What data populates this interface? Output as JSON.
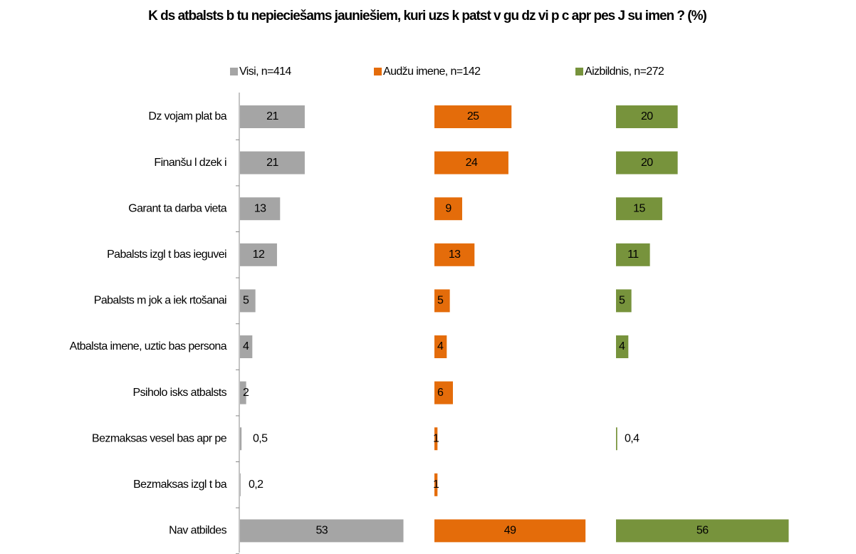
{
  "chart_data": {
    "type": "bar",
    "orientation": "horizontal",
    "title": "K ds atbalsts b tu nepieciešams jauniešiem, kuri uzs k patst v gu dz vi p c apr pes J su imen ? (%)",
    "categories": [
      "Dz vojam  plat ba",
      "Finanšu l dzek i",
      "Garant  ta darba vieta",
      "Pabalsts izgl t bas ieguvei",
      "Pabalsts m  jok a iek  rtošanai",
      "Atbalsta  imene, uztic bas persona",
      "Psiholo  isks atbalsts",
      "Bezmaksas vesel bas apr  pe",
      "Bezmaksas izgl t ba",
      "Nav atbildes"
    ],
    "series": [
      {
        "name": "Visi, n=414",
        "color": "#a5a5a5",
        "values": [
          21,
          21,
          13,
          12,
          5,
          4,
          2,
          0.5,
          0.2,
          53
        ],
        "value_labels": [
          "21",
          "21",
          "13",
          "12",
          "5",
          "4",
          "2",
          "0,5",
          "0,2",
          "53"
        ]
      },
      {
        "name": "Audžu  imene, n=142",
        "color": "#e46c0a",
        "values": [
          25,
          24,
          9,
          13,
          5,
          4,
          6,
          1,
          1,
          49
        ],
        "value_labels": [
          "25",
          "24",
          "9",
          "13",
          "5",
          "4",
          "6",
          "1",
          "1",
          "49"
        ]
      },
      {
        "name": "Aizbildnis, n=272",
        "color": "#77933c",
        "values": [
          20,
          20,
          15,
          11,
          5,
          4,
          null,
          0.4,
          null,
          56
        ],
        "value_labels": [
          "20",
          "20",
          "15",
          "11",
          "5",
          "4",
          null,
          "0,4",
          null,
          "56"
        ]
      }
    ]
  }
}
